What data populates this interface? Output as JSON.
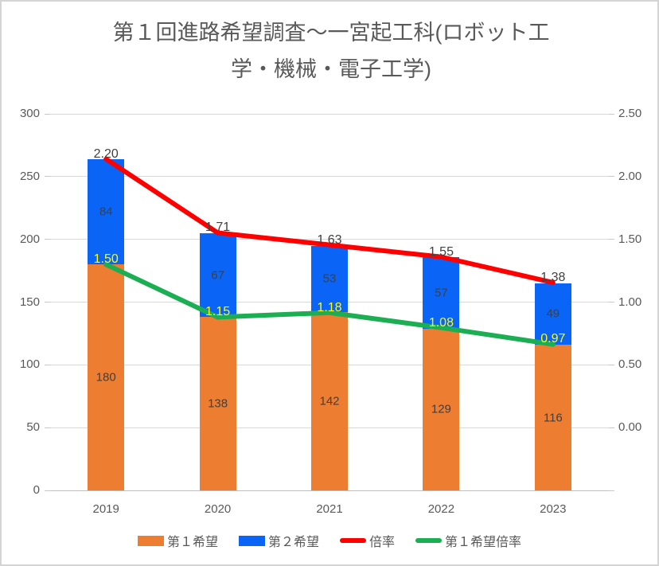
{
  "header": {
    "title_lines": [
      "第１回進路希望調査～一宮起工科(ロボット工",
      "学・機械・電子工学)"
    ]
  },
  "chart_data": {
    "type": "combo-stacked-bar-line",
    "title": "第１回進路希望調査～一宮起工科(ロボット工学・機械・電子工学)",
    "categories": [
      "2019",
      "2020",
      "2021",
      "2022",
      "2023"
    ],
    "series": [
      {
        "name": "第１希望",
        "type": "bar",
        "stack": "total",
        "axis": "left",
        "color": "#ED7D31",
        "label_color": "#404040",
        "values": [
          180,
          138,
          142,
          129,
          116
        ],
        "labels": [
          "180",
          "138",
          "142",
          "129",
          "116"
        ]
      },
      {
        "name": "第２希望",
        "type": "bar",
        "stack": "total",
        "axis": "left",
        "color": "#0A64F5",
        "label_color": "#404040",
        "values": [
          84,
          67,
          53,
          57,
          49
        ],
        "labels": [
          "84",
          "67",
          "53",
          "57",
          "49"
        ]
      },
      {
        "name": "倍率",
        "type": "line",
        "axis": "right",
        "color": "#FF0000",
        "label_color": "#404040",
        "values": [
          2.2,
          1.71,
          1.63,
          1.55,
          1.38
        ],
        "labels": [
          "2.20",
          "1.71",
          "1.63",
          "1.55",
          "1.38"
        ]
      },
      {
        "name": "第１希望倍率",
        "type": "line",
        "axis": "right",
        "color": "#1CAE53",
        "label_color": "#FFFF00",
        "values": [
          1.5,
          1.15,
          1.18,
          1.08,
          0.97
        ],
        "labels": [
          "1.50",
          "1.15",
          "1.18",
          "1.08",
          "0.97"
        ]
      }
    ],
    "left_axis": {
      "min": 0,
      "max": 300,
      "ticks": [
        "300",
        "250",
        "200",
        "150",
        "100",
        "50",
        "0"
      ]
    },
    "right_axis": {
      "min": 0,
      "max": 2.5,
      "ticks": [
        "2.50",
        "2.00",
        "1.50",
        "1.00",
        "0.50",
        "0.00"
      ]
    },
    "legend_position": "bottom",
    "grid": true,
    "colors": {
      "gridline": "#D9D9D9",
      "axis_line": "#BFBFBF",
      "axis_text": "#595959",
      "title_text": "#595959",
      "bar_label_text": "#404040",
      "frame_border": "#D4D4D4"
    }
  }
}
